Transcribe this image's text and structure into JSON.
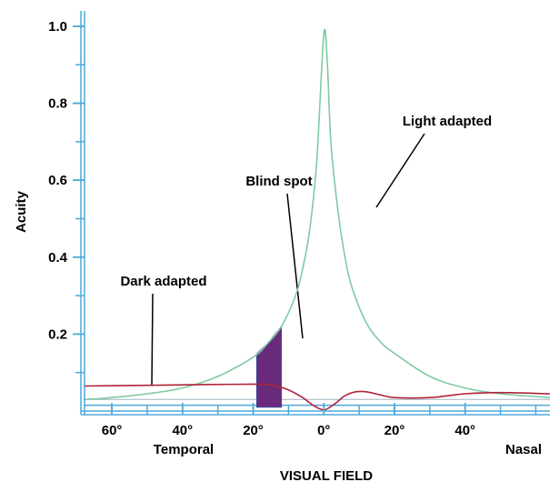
{
  "chart_data": {
    "type": "line",
    "title": "",
    "xlabel": "VISUAL FIELD",
    "ylabel": "Acuity",
    "xlim": [
      -68,
      64
    ],
    "ylim": [
      0,
      1.04
    ],
    "x_ticks": [
      {
        "value": -60,
        "label": "60°"
      },
      {
        "value": -40,
        "label": "40°"
      },
      {
        "value": -20,
        "label": "20°"
      },
      {
        "value": 0,
        "label": "0°"
      },
      {
        "value": 20,
        "label": "20°"
      },
      {
        "value": 40,
        "label": "40°"
      }
    ],
    "y_ticks": [
      {
        "value": 0.2,
        "label": "0.2"
      },
      {
        "value": 0.4,
        "label": "0.4"
      },
      {
        "value": 0.6,
        "label": "0.6"
      },
      {
        "value": 0.8,
        "label": "0.8"
      },
      {
        "value": 1.0,
        "label": "1.0"
      }
    ],
    "region_labels": {
      "temporal": "Temporal",
      "nasal": "Nasal"
    },
    "series": [
      {
        "name": "Light adapted",
        "color": "#7ecba1",
        "x": [
          -68,
          -60,
          -50,
          -40,
          -30,
          -20,
          -16,
          -12,
          -8,
          -6,
          -4,
          -2,
          0,
          1,
          2,
          4,
          6,
          8,
          12,
          16,
          20,
          30,
          40,
          50,
          64
        ],
        "y": [
          0.03,
          0.035,
          0.045,
          0.06,
          0.09,
          0.14,
          0.175,
          0.22,
          0.3,
          0.37,
          0.47,
          0.65,
          0.98,
          0.9,
          0.7,
          0.52,
          0.4,
          0.32,
          0.23,
          0.18,
          0.15,
          0.09,
          0.06,
          0.045,
          0.035
        ]
      },
      {
        "name": "Dark adapted",
        "color": "#b0243a",
        "x": [
          -68,
          -60,
          -40,
          -20,
          -15,
          -10,
          -6,
          -3,
          0,
          3,
          6,
          9,
          12,
          16,
          20,
          30,
          40,
          50,
          64
        ],
        "y": [
          0.065,
          0.066,
          0.068,
          0.07,
          0.068,
          0.055,
          0.035,
          0.015,
          0.003,
          0.018,
          0.04,
          0.05,
          0.05,
          0.042,
          0.035,
          0.035,
          0.045,
          0.048,
          0.045
        ]
      }
    ],
    "blind_spot": {
      "label": "Blind spot",
      "x_range": [
        -19,
        -12
      ],
      "color": "#6a2a7c"
    },
    "annotations": [
      {
        "label": "Light adapted"
      },
      {
        "label": "Dark adapted"
      },
      {
        "label": "Blind spot"
      }
    ],
    "grid": false,
    "axis_color": "#4fa8d8"
  }
}
